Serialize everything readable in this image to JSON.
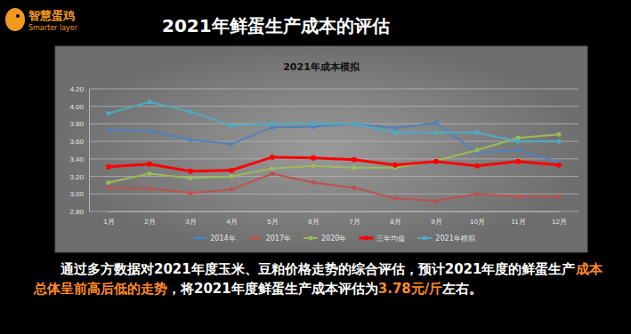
{
  "page": {
    "logo": {
      "name": "智慧蛋鸡",
      "subtitle": "Smarter layer"
    },
    "heading": "2021年鲜蛋生产成本的评估",
    "caption": [
      {
        "text": "通过多方数据对2021年度玉米、豆粕价格走势的综合评估，预计2021年度的鲜蛋生产",
        "highlight": false
      },
      {
        "text": "成本总体呈前高后低的走势",
        "highlight": true
      },
      {
        "text": "，将2021年度鲜蛋生产成本评估为",
        "highlight": false
      },
      {
        "text": "3.78元/斤",
        "highlight": true
      },
      {
        "text": "左右。",
        "highlight": false
      }
    ]
  },
  "chart_data": {
    "type": "line",
    "title": "2021年成本模拟",
    "categories": [
      "1月",
      "2月",
      "3月",
      "4月",
      "5月",
      "6月",
      "7月",
      "8月",
      "9月",
      "10月",
      "11月",
      "12月"
    ],
    "series": [
      {
        "name": "2014年",
        "color": "#4f81bd",
        "marker": "circle",
        "values": [
          3.73,
          3.72,
          3.62,
          3.57,
          3.76,
          3.77,
          3.8,
          3.75,
          3.81,
          3.47,
          3.5,
          3.36
        ]
      },
      {
        "name": "2017年",
        "color": "#c0504d",
        "marker": "circle",
        "values": [
          3.07,
          3.06,
          3.01,
          3.05,
          3.23,
          3.13,
          3.07,
          2.95,
          2.92,
          3.0,
          2.97,
          2.97
        ]
      },
      {
        "name": "2020年",
        "color": "#9bbb59",
        "marker": "circle",
        "values": [
          3.13,
          3.23,
          3.18,
          3.2,
          3.29,
          3.32,
          3.3,
          3.3,
          3.38,
          3.5,
          3.64,
          3.68
        ]
      },
      {
        "name": "三年均值",
        "color": "#ff0000",
        "marker": "circle",
        "values": [
          3.31,
          3.34,
          3.26,
          3.27,
          3.42,
          3.41,
          3.39,
          3.33,
          3.37,
          3.32,
          3.37,
          3.33
        ]
      },
      {
        "name": "2021年模拟",
        "color": "#4bacc6",
        "marker": "circle",
        "values": [
          3.92,
          4.05,
          3.94,
          3.78,
          3.8,
          3.8,
          3.8,
          3.7,
          3.7,
          3.7,
          3.6,
          3.6
        ]
      }
    ],
    "ylim": [
      2.8,
      4.2
    ],
    "yticks": [
      {
        "value": 2.8,
        "label": "2.80"
      },
      {
        "value": 3.0,
        "label": "3.00"
      },
      {
        "value": 3.2,
        "label": "3.20"
      },
      {
        "value": 3.4,
        "label": "3.40"
      },
      {
        "value": 3.6,
        "label": "3.60"
      },
      {
        "value": 3.8,
        "label": "3.80"
      },
      {
        "value": 4.0,
        "label": "4.00"
      },
      {
        "value": 4.2,
        "label": "4.20"
      }
    ],
    "grid": true,
    "legend": "bottom"
  }
}
